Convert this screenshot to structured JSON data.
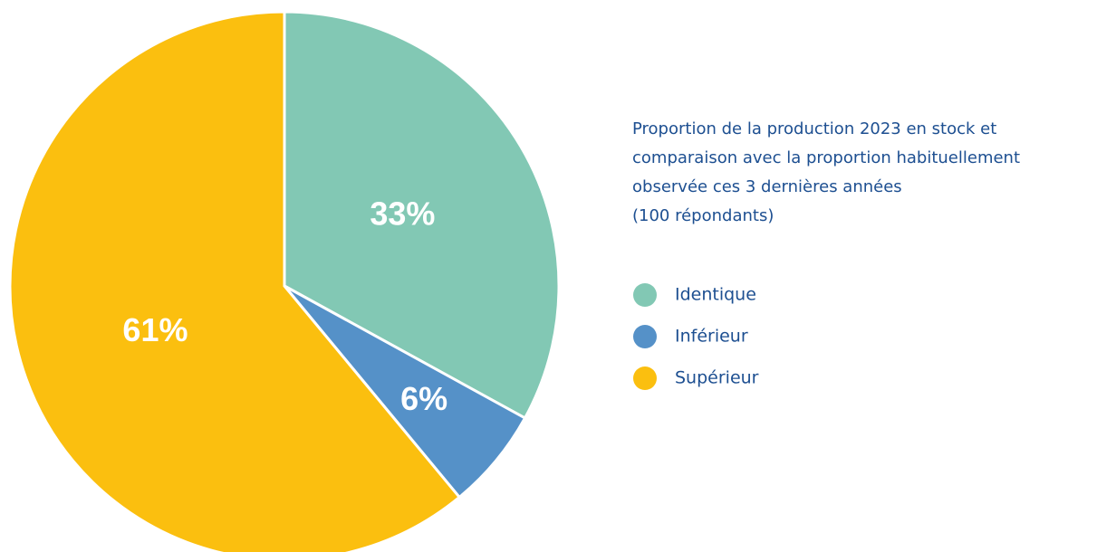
{
  "chart_data": {
    "type": "pie",
    "title": [
      "Proportion de la production 2023 en stock et",
      "comparaison avec la proportion habituellement",
      "observée ces 3 dernières années"
    ],
    "subtitle": "(100 répondants)",
    "categories": [
      "Identique",
      "Inférieur",
      "Supérieur"
    ],
    "values": [
      33,
      6,
      61
    ],
    "value_labels": [
      "33%",
      "6%",
      "61%"
    ],
    "colors": [
      "#82c8b4",
      "#5591c8",
      "#fbbf0f"
    ]
  }
}
